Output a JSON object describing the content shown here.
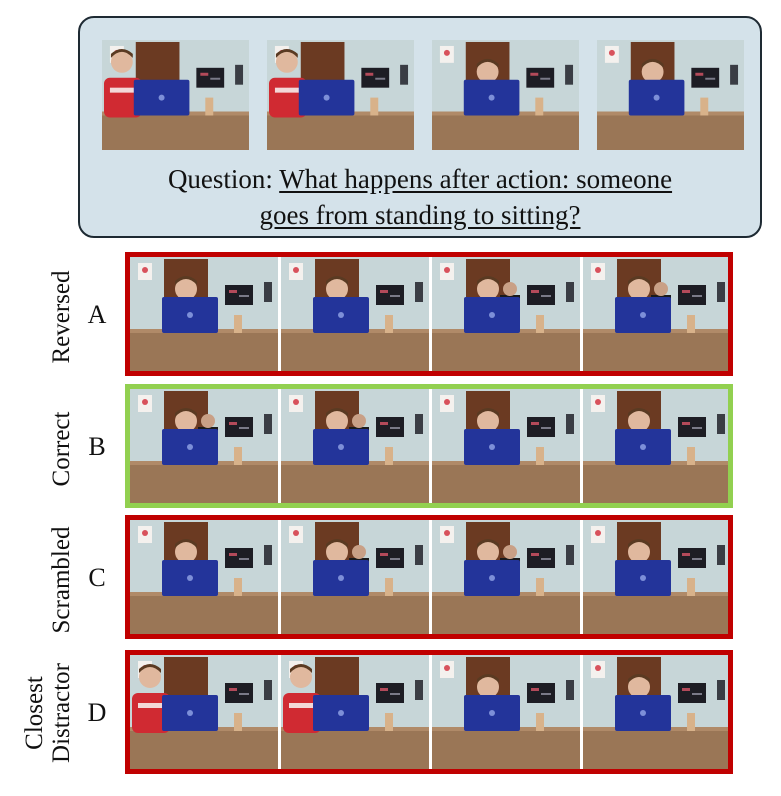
{
  "question": {
    "prefix": "Question: ",
    "line1": "What happens after action: someone",
    "line2": "goes from standing to sitting?"
  },
  "question_frames": [
    {
      "scene": "standing-left"
    },
    {
      "scene": "standing-left"
    },
    {
      "scene": "seated-center"
    },
    {
      "scene": "seated-center"
    }
  ],
  "options": [
    {
      "letter": "A",
      "label": "Reversed",
      "correct": false,
      "frames": [
        {
          "scene": "seated-center"
        },
        {
          "scene": "seated-center"
        },
        {
          "scene": "seated-center-person-behind"
        },
        {
          "scene": "seated-center-person-behind"
        }
      ]
    },
    {
      "letter": "B",
      "label": "Correct",
      "correct": true,
      "frames": [
        {
          "scene": "seated-center-person-behind"
        },
        {
          "scene": "seated-center-person-behind"
        },
        {
          "scene": "seated-center"
        },
        {
          "scene": "seated-center"
        }
      ]
    },
    {
      "letter": "C",
      "label": "Scrambled",
      "correct": false,
      "frames": [
        {
          "scene": "seated-center"
        },
        {
          "scene": "seated-center-person-behind"
        },
        {
          "scene": "seated-center-person-behind"
        },
        {
          "scene": "seated-center"
        }
      ]
    },
    {
      "letter": "D",
      "label_line1": "Closest",
      "label_line2": "Distractor",
      "correct": false,
      "frames": [
        {
          "scene": "standing-left"
        },
        {
          "scene": "standing-left"
        },
        {
          "scene": "seated-center"
        },
        {
          "scene": "seated-center"
        }
      ]
    }
  ],
  "colors": {
    "wrong_border": "#c00000",
    "correct_border": "#92d050",
    "question_box": "#d4e2ea"
  }
}
